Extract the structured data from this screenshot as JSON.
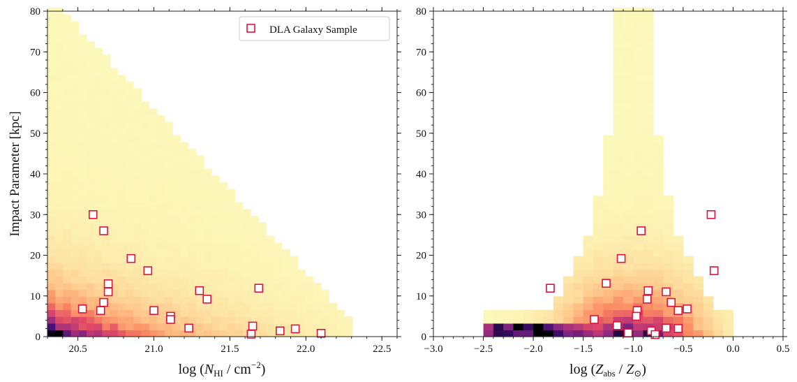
{
  "chart_data": [
    {
      "type": "heatmap",
      "panel": "left",
      "xlabel": "log (N_HI / cm^-2)",
      "ylabel": "Impact Parameter  [kpc]",
      "xlim": [
        20.3,
        22.6
      ],
      "ylim": [
        0,
        80
      ],
      "xticks": [
        "20.5",
        "21.0",
        "21.5",
        "22.0",
        "22.5"
      ],
      "yticks": [
        "0",
        "10",
        "20",
        "30",
        "40",
        "50",
        "60",
        "70",
        "80"
      ],
      "colormap": "magma_r",
      "legend": {
        "label": "DLA Galaxy Sample",
        "placement": "upper right",
        "marker": "open square",
        "edgecolor": "#dc143c"
      },
      "points": [
        {
          "x": 20.6,
          "y": 30.0
        },
        {
          "x": 20.67,
          "y": 26.0
        },
        {
          "x": 20.85,
          "y": 19.2
        },
        {
          "x": 20.96,
          "y": 16.2
        },
        {
          "x": 20.7,
          "y": 13.0
        },
        {
          "x": 20.7,
          "y": 11.0
        },
        {
          "x": 20.67,
          "y": 8.4
        },
        {
          "x": 20.53,
          "y": 6.8
        },
        {
          "x": 20.65,
          "y": 6.4
        },
        {
          "x": 21.0,
          "y": 6.4
        },
        {
          "x": 21.11,
          "y": 5.0
        },
        {
          "x": 21.11,
          "y": 4.2
        },
        {
          "x": 21.3,
          "y": 11.3
        },
        {
          "x": 21.35,
          "y": 9.2
        },
        {
          "x": 21.23,
          "y": 2.1
        },
        {
          "x": 21.69,
          "y": 11.9
        },
        {
          "x": 21.65,
          "y": 2.6
        },
        {
          "x": 21.64,
          "y": 0.6
        },
        {
          "x": 21.83,
          "y": 1.4
        },
        {
          "x": 21.93,
          "y": 1.9
        },
        {
          "x": 22.1,
          "y": 0.8
        }
      ]
    },
    {
      "type": "heatmap",
      "panel": "right",
      "xlabel": "log (Z_abs / Z_sun)",
      "xlim": [
        -3.0,
        0.5
      ],
      "ylim": [
        0,
        80
      ],
      "xticks": [
        "−3.0",
        "−2.5",
        "−2.0",
        "−1.5",
        "−1.0",
        "−0.5",
        "0.0",
        "0.5"
      ],
      "yticks": [
        "0",
        "10",
        "20",
        "30",
        "40",
        "50",
        "60",
        "70",
        "80"
      ],
      "colormap": "magma_r",
      "points": [
        {
          "x": -0.92,
          "y": 26.0
        },
        {
          "x": -1.12,
          "y": 19.2
        },
        {
          "x": -1.27,
          "y": 13.1
        },
        {
          "x": -1.83,
          "y": 11.9
        },
        {
          "x": -0.85,
          "y": 11.3
        },
        {
          "x": -0.67,
          "y": 11.0
        },
        {
          "x": -0.86,
          "y": 9.2
        },
        {
          "x": -0.62,
          "y": 8.4
        },
        {
          "x": -0.46,
          "y": 6.8
        },
        {
          "x": -0.96,
          "y": 6.4
        },
        {
          "x": -0.55,
          "y": 6.4
        },
        {
          "x": -0.97,
          "y": 5.0
        },
        {
          "x": -1.39,
          "y": 4.2
        },
        {
          "x": -1.16,
          "y": 2.7
        },
        {
          "x": -0.67,
          "y": 2.1
        },
        {
          "x": -0.55,
          "y": 2.0
        },
        {
          "x": -0.82,
          "y": 1.4
        },
        {
          "x": -1.05,
          "y": 0.9
        },
        {
          "x": -0.78,
          "y": 0.5
        },
        {
          "x": -0.22,
          "y": 30.0
        },
        {
          "x": -0.19,
          "y": 16.2
        }
      ]
    }
  ]
}
